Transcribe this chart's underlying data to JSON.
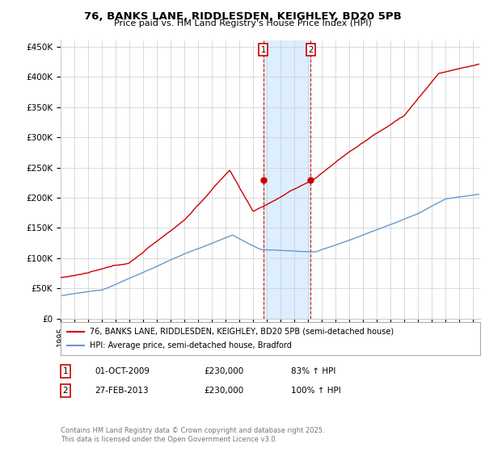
{
  "title_line1": "76, BANKS LANE, RIDDLESDEN, KEIGHLEY, BD20 5PB",
  "title_line2": "Price paid vs. HM Land Registry's House Price Index (HPI)",
  "ylabel_ticks": [
    "£0",
    "£50K",
    "£100K",
    "£150K",
    "£200K",
    "£250K",
    "£300K",
    "£350K",
    "£400K",
    "£450K"
  ],
  "ytick_values": [
    0,
    50000,
    100000,
    150000,
    200000,
    250000,
    300000,
    350000,
    400000,
    450000
  ],
  "ylim": [
    0,
    460000
  ],
  "xlim_start": 1995.0,
  "xlim_end": 2025.5,
  "red_line_color": "#cc0000",
  "blue_line_color": "#6699cc",
  "shading_color": "#ddeeff",
  "marker1_x": 2009.75,
  "marker1_y": 230000,
  "marker2_x": 2013.17,
  "marker2_y": 230000,
  "marker1_label": "1",
  "marker2_label": "2",
  "vline1_x": 2009.75,
  "vline2_x": 2013.17,
  "legend_red": "76, BANKS LANE, RIDDLESDEN, KEIGHLEY, BD20 5PB (semi-detached house)",
  "legend_blue": "HPI: Average price, semi-detached house, Bradford",
  "table_row1": [
    "1",
    "01-OCT-2009",
    "£230,000",
    "83% ↑ HPI"
  ],
  "table_row2": [
    "2",
    "27-FEB-2013",
    "£230,000",
    "100% ↑ HPI"
  ],
  "footer": "Contains HM Land Registry data © Crown copyright and database right 2025.\nThis data is licensed under the Open Government Licence v3.0.",
  "background_color": "#ffffff",
  "grid_color": "#cccccc",
  "fig_width": 6.0,
  "fig_height": 5.6,
  "fig_dpi": 100
}
